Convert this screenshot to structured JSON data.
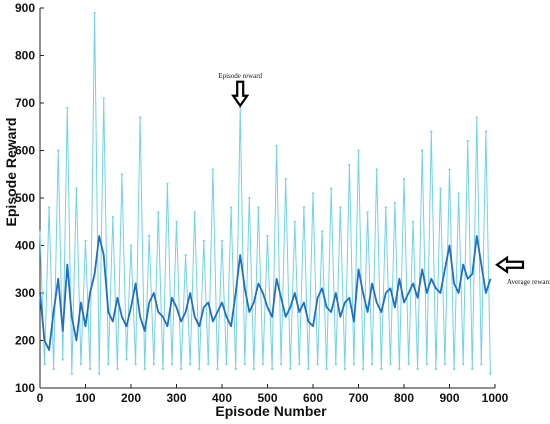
{
  "chart_data": {
    "type": "line",
    "xlabel": "Episode Number",
    "ylabel": "Episode Reward",
    "xlim": [
      0,
      1000
    ],
    "ylim": [
      100,
      900
    ],
    "xticks": [
      "0",
      "100",
      "200",
      "300",
      "400",
      "500",
      "600",
      "700",
      "800",
      "900",
      "1000"
    ],
    "yticks": [
      "100",
      "200",
      "300",
      "400",
      "500",
      "600",
      "700",
      "800",
      "900"
    ],
    "grid": false,
    "annotations": [
      {
        "text": "Episode reward",
        "x": 440,
        "y": 690
      },
      {
        "text": "Average reward",
        "x": 1000,
        "y": 330
      }
    ],
    "series": [
      {
        "name": "Episode reward",
        "color": "#6fd3ea",
        "x": [
          0,
          10,
          20,
          30,
          40,
          50,
          60,
          70,
          80,
          90,
          100,
          110,
          120,
          130,
          140,
          150,
          160,
          170,
          180,
          190,
          200,
          210,
          220,
          230,
          240,
          250,
          260,
          270,
          280,
          290,
          300,
          310,
          320,
          330,
          340,
          350,
          360,
          370,
          380,
          390,
          400,
          410,
          420,
          430,
          440,
          450,
          460,
          470,
          480,
          490,
          500,
          510,
          520,
          530,
          540,
          550,
          560,
          570,
          580,
          590,
          600,
          610,
          620,
          630,
          640,
          650,
          660,
          670,
          680,
          690,
          700,
          710,
          720,
          730,
          740,
          750,
          760,
          770,
          780,
          790,
          800,
          810,
          820,
          830,
          840,
          850,
          860,
          870,
          880,
          890,
          900,
          910,
          920,
          930,
          940,
          950,
          960,
          970,
          980,
          990
        ],
        "values": [
          430,
          150,
          480,
          140,
          600,
          160,
          690,
          130,
          520,
          150,
          410,
          140,
          890,
          130,
          710,
          150,
          460,
          140,
          550,
          160,
          400,
          150,
          670,
          140,
          420,
          150,
          470,
          140,
          530,
          150,
          450,
          140,
          380,
          150,
          470,
          140,
          410,
          150,
          560,
          140,
          410,
          150,
          480,
          140,
          690,
          150,
          500,
          140,
          480,
          150,
          420,
          140,
          610,
          150,
          540,
          140,
          450,
          150,
          480,
          140,
          510,
          150,
          430,
          140,
          520,
          150,
          480,
          140,
          570,
          150,
          600,
          140,
          470,
          150,
          560,
          140,
          480,
          150,
          490,
          140,
          540,
          150,
          450,
          140,
          600,
          150,
          640,
          140,
          520,
          150,
          560,
          140,
          510,
          150,
          620,
          140,
          670,
          150,
          640,
          130
        ]
      },
      {
        "name": "Average reward",
        "color": "#1f6fc4",
        "x": [
          0,
          10,
          20,
          30,
          40,
          50,
          60,
          70,
          80,
          90,
          100,
          110,
          120,
          130,
          140,
          150,
          160,
          170,
          180,
          190,
          200,
          210,
          220,
          230,
          240,
          250,
          260,
          270,
          280,
          290,
          300,
          310,
          320,
          330,
          340,
          350,
          360,
          370,
          380,
          390,
          400,
          410,
          420,
          430,
          440,
          450,
          460,
          470,
          480,
          490,
          500,
          510,
          520,
          530,
          540,
          550,
          560,
          570,
          580,
          590,
          600,
          610,
          620,
          630,
          640,
          650,
          660,
          670,
          680,
          690,
          700,
          710,
          720,
          730,
          740,
          750,
          760,
          770,
          780,
          790,
          800,
          810,
          820,
          830,
          840,
          850,
          860,
          870,
          880,
          890,
          900,
          910,
          920,
          930,
          940,
          950,
          960,
          970,
          980,
          990
        ],
        "values": [
          300,
          200,
          180,
          260,
          330,
          220,
          360,
          250,
          200,
          280,
          230,
          300,
          340,
          420,
          380,
          260,
          240,
          290,
          250,
          230,
          270,
          320,
          250,
          220,
          280,
          300,
          260,
          250,
          230,
          290,
          270,
          240,
          260,
          300,
          250,
          230,
          270,
          280,
          240,
          260,
          280,
          250,
          230,
          300,
          380,
          310,
          260,
          280,
          320,
          300,
          270,
          250,
          330,
          290,
          250,
          270,
          300,
          260,
          280,
          240,
          230,
          290,
          310,
          270,
          260,
          300,
          250,
          280,
          290,
          240,
          350,
          300,
          260,
          320,
          280,
          260,
          300,
          310,
          270,
          330,
          280,
          300,
          320,
          290,
          350,
          300,
          330,
          310,
          300,
          350,
          400,
          320,
          300,
          360,
          330,
          340,
          420,
          360,
          300,
          330
        ]
      }
    ]
  }
}
